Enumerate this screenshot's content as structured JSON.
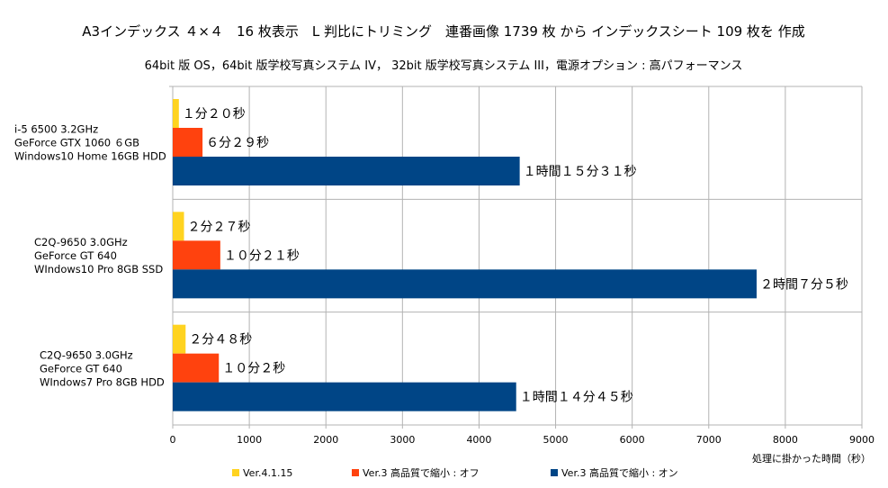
{
  "chart_data": {
    "type": "bar",
    "orientation": "horizontal",
    "title": "A3インデックス ４×４　16 枚表示　L 判比にトリミング　連番画像 1739 枚  から  インデックスシート 109 枚を 作成",
    "subtitle": "64bit 版  OS，64bit 版学校写真システム IV，  32bit 版学校写真システム III，電源オプション : 高パフォーマンス",
    "xlabel": "処理に掛かった時間（秒）",
    "xlim": [
      0,
      9000
    ],
    "xticks": [
      0,
      1000,
      2000,
      3000,
      4000,
      5000,
      6000,
      7000,
      8000,
      9000
    ],
    "grid": true,
    "legend_position": "bottom",
    "categories": [
      [
        "i-5 6500 3.2GHz",
        "GeForce GTX  1060  ６GB",
        "Windows10 Home 16GB HDD"
      ],
      [
        "C2Q-9650 3.0GHz",
        "GeForce GT 640",
        "WIndows10 Pro 8GB SSD"
      ],
      [
        "C2Q-9650 3.0GHz",
        "GeForce GT 640",
        "WIndows7 Pro 8GB HDD"
      ]
    ],
    "series": [
      {
        "name": "Ver.4.1.15",
        "color": "#FFD320",
        "values": [
          80,
          147,
          168
        ],
        "labels": [
          "１分２０秒",
          "２分２７秒",
          "２分４８秒"
        ]
      },
      {
        "name": "Ver.3  高品質で縮小 : オフ",
        "color": "#FF420E",
        "values": [
          389,
          621,
          602
        ],
        "labels": [
          "６分２９秒",
          "１０分２１秒",
          "１０分２秒"
        ]
      },
      {
        "name": "Ver.3 高品質で縮小 : オン",
        "color": "#004586",
        "values": [
          4531,
          7625,
          4485
        ],
        "labels": [
          "１時間１５分３１秒",
          "２時間７分５秒",
          "１時間１４分４５秒"
        ]
      }
    ]
  }
}
